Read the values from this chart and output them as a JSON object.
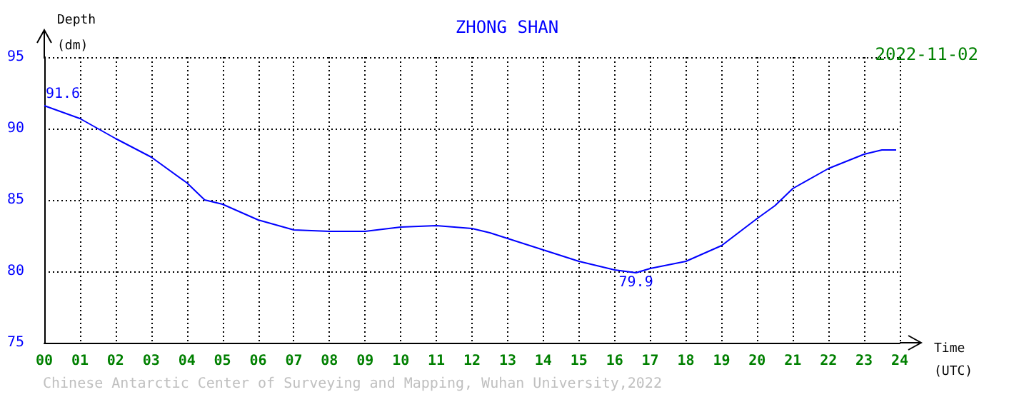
{
  "chart_data": {
    "type": "line",
    "title": "ZHONG SHAN",
    "subtitle": "2022-11-02",
    "xlabel": "Time (UTC)",
    "ylabel": "Depth (dm)",
    "x": [
      0,
      1,
      2,
      3,
      4,
      4.5,
      5,
      6,
      7,
      8,
      9,
      10,
      11,
      12,
      12.5,
      13,
      14,
      15,
      16,
      16.6,
      17,
      18,
      19,
      20,
      20.5,
      21,
      22,
      23,
      23.5,
      23.9
    ],
    "series": [
      {
        "color": "#0000ff",
        "values": [
          91.6,
          90.7,
          89.3,
          88.0,
          86.2,
          85.0,
          84.7,
          83.6,
          82.9,
          82.8,
          82.8,
          83.1,
          83.2,
          83.0,
          82.7,
          82.3,
          81.5,
          80.7,
          80.1,
          79.9,
          80.2,
          80.7,
          81.8,
          83.7,
          84.6,
          85.8,
          87.2,
          88.2,
          88.5,
          88.5
        ]
      }
    ],
    "xlim": [
      0,
      24
    ],
    "xticks": [
      {
        "value": 0,
        "label": "00"
      },
      {
        "value": 1,
        "label": "01"
      },
      {
        "value": 2,
        "label": "02"
      },
      {
        "value": 3,
        "label": "03"
      },
      {
        "value": 4,
        "label": "04"
      },
      {
        "value": 5,
        "label": "05"
      },
      {
        "value": 6,
        "label": "06"
      },
      {
        "value": 7,
        "label": "07"
      },
      {
        "value": 8,
        "label": "08"
      },
      {
        "value": 9,
        "label": "09"
      },
      {
        "value": 10,
        "label": "10"
      },
      {
        "value": 11,
        "label": "11"
      },
      {
        "value": 12,
        "label": "12"
      },
      {
        "value": 13,
        "label": "13"
      },
      {
        "value": 14,
        "label": "14"
      },
      {
        "value": 15,
        "label": "15"
      },
      {
        "value": 16,
        "label": "16"
      },
      {
        "value": 17,
        "label": "17"
      },
      {
        "value": 18,
        "label": "18"
      },
      {
        "value": 19,
        "label": "19"
      },
      {
        "value": 20,
        "label": "20"
      },
      {
        "value": 21,
        "label": "21"
      },
      {
        "value": 22,
        "label": "22"
      },
      {
        "value": 23,
        "label": "23"
      },
      {
        "value": 24,
        "label": "24"
      }
    ],
    "ylim": [
      75,
      95
    ],
    "yticks": [
      75,
      80,
      85,
      90,
      95
    ],
    "grid": true,
    "line_style": "solid",
    "marker": "none",
    "annotations": [
      {
        "text": "91.6",
        "x": 0,
        "y": 91.6
      },
      {
        "text": "79.9",
        "x": 16.6,
        "y": 79.9
      },
      "Chinese Antarctic Center of Surveying and Mapping, Wuhan University,2022"
    ]
  }
}
